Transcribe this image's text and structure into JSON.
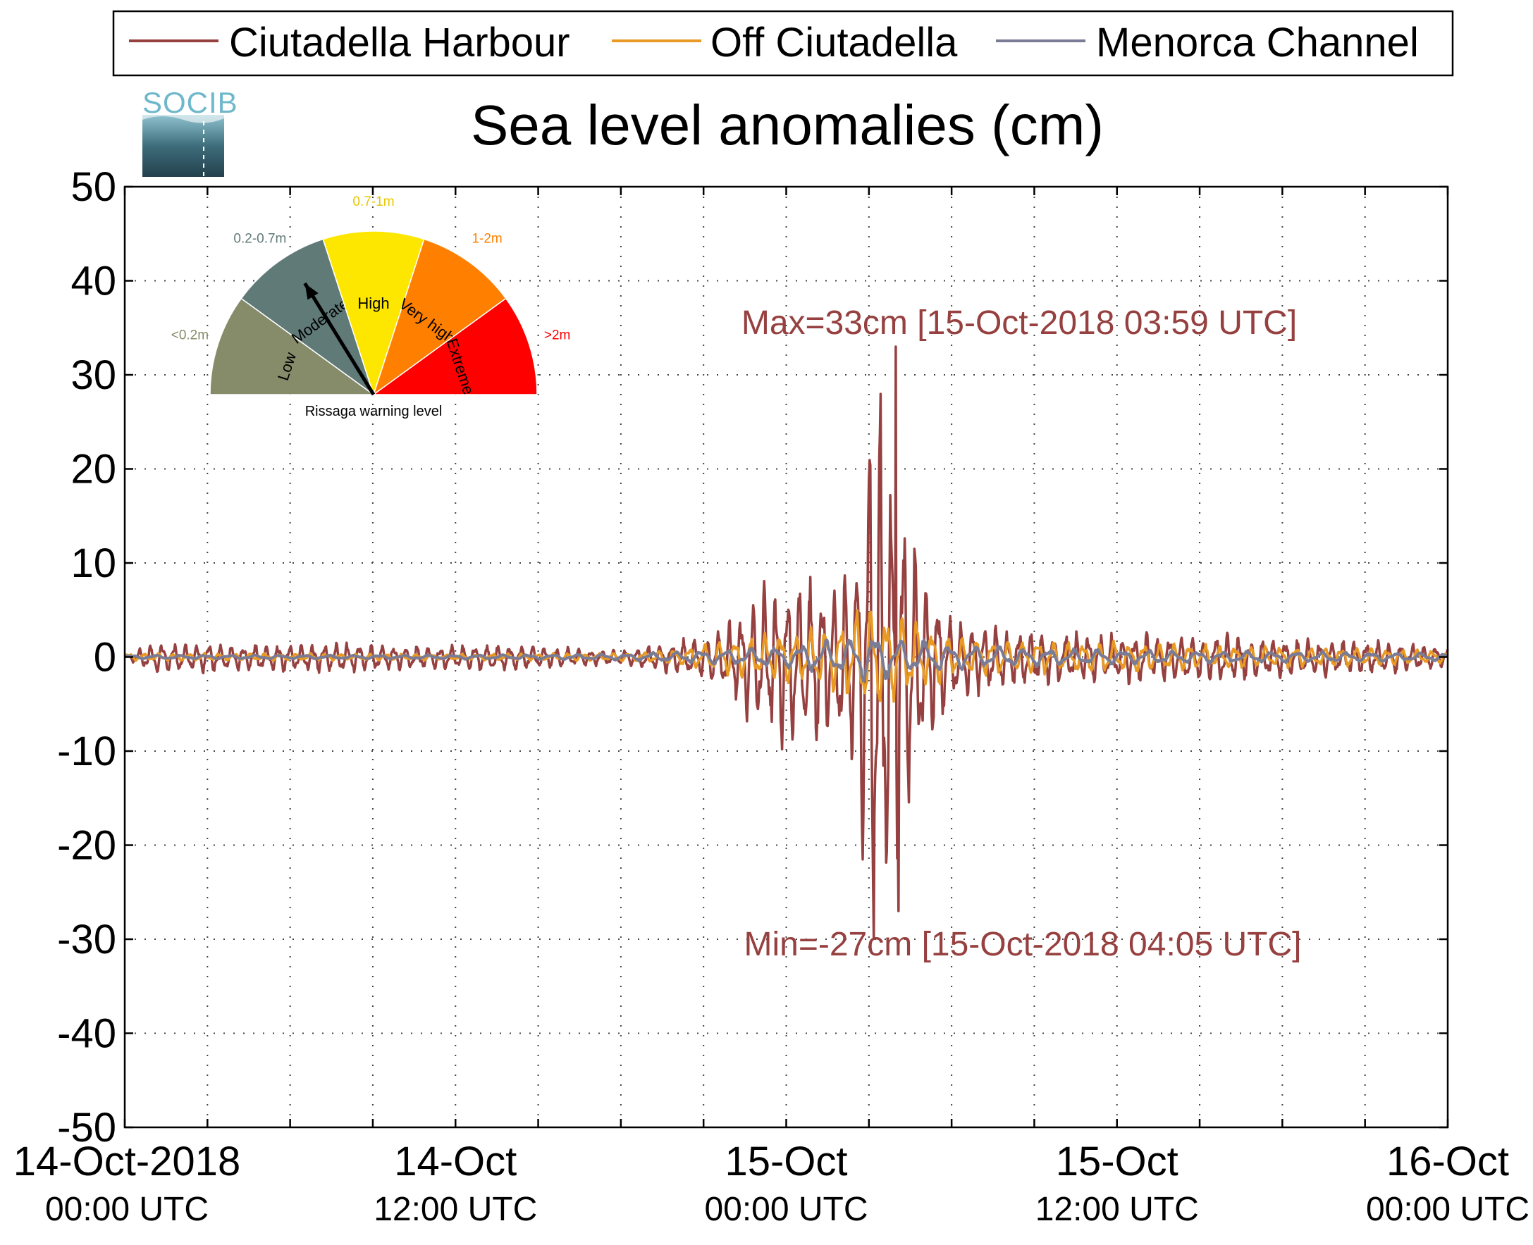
{
  "chart_data": {
    "type": "line",
    "title": "Sea level anomalies (cm)",
    "logo": "SOCIB",
    "ylim": [
      -50,
      50
    ],
    "yticks": [
      "50",
      "40",
      "30",
      "20",
      "10",
      "0",
      "-10",
      "-20",
      "-30",
      "-40",
      "-50"
    ],
    "xlim_hours": [
      0,
      48
    ],
    "xticks": [
      {
        "line1": "14-Oct-2018",
        "line2": "00:00 UTC"
      },
      {
        "line1": "14-Oct",
        "line2": "12:00 UTC"
      },
      {
        "line1": "15-Oct",
        "line2": "00:00 UTC"
      },
      {
        "line1": "15-Oct",
        "line2": "12:00 UTC"
      },
      {
        "line1": "16-Oct",
        "line2": "00:00 UTC"
      }
    ],
    "grid": true,
    "legend_position": "top",
    "series": [
      {
        "name": "Ciutadella Harbour",
        "color": "#964040",
        "envelope": [
          [
            0,
            0
          ],
          [
            1,
            1.6
          ],
          [
            4,
            1.4
          ],
          [
            6,
            1.4
          ],
          [
            8,
            1.5
          ],
          [
            10,
            1.2
          ],
          [
            12,
            1.2
          ],
          [
            14,
            1.4
          ],
          [
            16,
            1.0
          ],
          [
            17,
            0.8
          ],
          [
            18,
            0.8
          ],
          [
            19,
            1.2
          ],
          [
            20,
            1.8
          ],
          [
            21,
            2.2
          ],
          [
            22,
            4.0
          ],
          [
            23,
            7.0
          ],
          [
            24,
            9.0
          ],
          [
            25,
            8.5
          ],
          [
            25.8,
            8.0
          ],
          [
            26.6,
            14.0
          ],
          [
            27.2,
            33.0
          ],
          [
            27.6,
            26.0
          ],
          [
            28,
            20.0
          ],
          [
            28.5,
            15.0
          ],
          [
            29,
            10.0
          ],
          [
            29.6,
            6.0
          ],
          [
            30.5,
            4.0
          ],
          [
            32,
            3.0
          ],
          [
            34,
            2.5
          ],
          [
            36,
            2.5
          ],
          [
            38,
            2.5
          ],
          [
            40,
            2.4
          ],
          [
            42,
            2.0
          ],
          [
            44,
            1.8
          ],
          [
            46,
            1.6
          ],
          [
            48,
            1.0
          ]
        ]
      },
      {
        "name": "Off Ciutadella",
        "color": "#E89A24",
        "envelope": [
          [
            0,
            0.4
          ],
          [
            12,
            0.3
          ],
          [
            18,
            0.4
          ],
          [
            20,
            0.8
          ],
          [
            22,
            1.8
          ],
          [
            24,
            2.5
          ],
          [
            26,
            3.5
          ],
          [
            27,
            6.0
          ],
          [
            27.5,
            5.0
          ],
          [
            28.5,
            4.0
          ],
          [
            30,
            2.0
          ],
          [
            32,
            1.8
          ],
          [
            36,
            1.5
          ],
          [
            40,
            1.2
          ],
          [
            44,
            1.0
          ],
          [
            48,
            0.6
          ]
        ]
      },
      {
        "name": "Menorca Channel",
        "color": "#7A7C96",
        "envelope": [
          [
            0,
            0.2
          ],
          [
            12,
            0.2
          ],
          [
            18,
            0.3
          ],
          [
            22,
            0.8
          ],
          [
            24,
            1.2
          ],
          [
            26,
            1.8
          ],
          [
            27,
            2.5
          ],
          [
            28,
            2.0
          ],
          [
            30,
            1.2
          ],
          [
            34,
            0.8
          ],
          [
            40,
            0.6
          ],
          [
            44,
            0.5
          ],
          [
            48,
            0.4
          ]
        ]
      }
    ],
    "annotations": {
      "max": {
        "text": "Max=33cm [15-Oct-2018 03:59 UTC]",
        "hour": 27.98,
        "value": 33
      },
      "min": {
        "text": "Min=-27cm [15-Oct-2018 04:05 UTC]",
        "hour": 28.08,
        "value": -27
      }
    },
    "gauge": {
      "title": "Rissaga warning level",
      "pointer_level": "Moderate",
      "levels": [
        {
          "name": "Low",
          "range": "<0.2m",
          "color": "#868C6A",
          "label_color": "#868C6A"
        },
        {
          "name": "Moderate",
          "range": "0.2-0.7m",
          "color": "#607A78",
          "label_color": "#607A78"
        },
        {
          "name": "High",
          "range": "0.7-1m",
          "color": "#FDE600",
          "label_color": "#E6C800"
        },
        {
          "name": "Very high",
          "range": "1-2m",
          "color": "#FF8000",
          "label_color": "#FF8000"
        },
        {
          "name": "Extreme",
          "range": ">2m",
          "color": "#FF0000",
          "label_color": "#FF0000"
        }
      ]
    }
  }
}
